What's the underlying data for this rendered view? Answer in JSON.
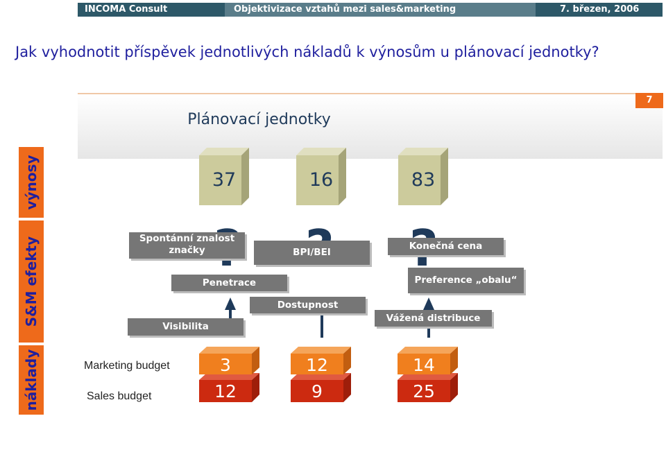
{
  "header": {
    "company": "INCOMA Consult",
    "topic": "Objektivizace vztahů mezi sales&marketing",
    "date": "7. březen, 2006"
  },
  "question": "Jak vyhodnotit příspěvek jednotlivých nákladů k výnosům u plánovací jednotky?",
  "slide_number": "7",
  "panel_title": "Plánovací jednotky",
  "side_labels": {
    "revenue": "výnosy",
    "effects": "S&M efekty",
    "costs": "náklady"
  },
  "units": [
    {
      "revenue": "37",
      "marketing": "3",
      "sales": "12",
      "question_mark": "?"
    },
    {
      "revenue": "16",
      "marketing": "12",
      "sales": "9",
      "question_mark": "?"
    },
    {
      "revenue": "83",
      "marketing": "14",
      "sales": "25",
      "question_mark": "?"
    }
  ],
  "effects": {
    "brand_awareness": "Spontánní znalost značky",
    "penetration": "Penetrace",
    "visibility": "Visibilita",
    "bpi": "BPI/BEI",
    "availability": "Dostupnost",
    "final_price": "Konečná cena",
    "packaging_pref": "Preference „obalu“",
    "weighted_distribution": "Vážená distribuce"
  },
  "budgets": {
    "marketing": "Marketing budget",
    "sales": "Sales budget"
  },
  "colors": {
    "accent": "#ee6a1b",
    "header_dark": "#2d5868",
    "revenue_box": "#cccb9c",
    "marketing_box": "#f07f1e",
    "sales_box": "#cc2a10"
  }
}
